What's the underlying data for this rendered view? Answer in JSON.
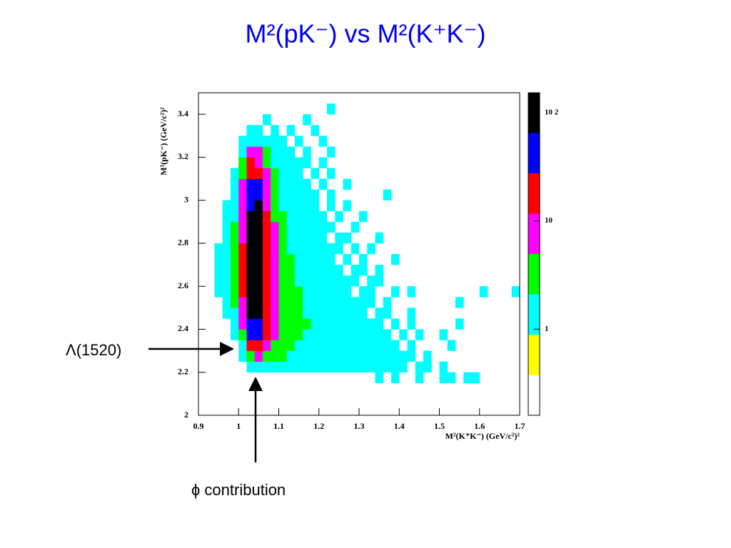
{
  "chart_data": {
    "type": "heatmap",
    "title": "M²(pK⁻) vs M²(K⁺K⁻)",
    "xlabel": "M²(K⁺K⁻) (GeV/c²)²",
    "ylabel": "M²(pK⁻) (GeV/c²)²",
    "annotations": [
      "Λ(1520)",
      "ϕ contribution"
    ],
    "xlim": [
      0.9,
      1.7
    ],
    "xticks": [
      0.9,
      1,
      1.1,
      1.2,
      1.3,
      1.4,
      1.5,
      1.6,
      1.7
    ],
    "ylim": [
      2,
      3.5
    ],
    "yticks": [
      2,
      2.2,
      2.4,
      2.6,
      2.8,
      3,
      3.2,
      3.4
    ],
    "zscale": "log",
    "zlim": [
      0.16,
      153
    ],
    "zticks": [
      1,
      10,
      {
        "value": 100,
        "label": "10 2"
      }
    ],
    "colors": [
      "#ffffff",
      "#ffff00",
      "#00ffff",
      "#00ff00",
      "#ff00ff",
      "#ff0000",
      "#0000ff",
      "#000000"
    ],
    "xbins": [
      0.9,
      0.92,
      0.94,
      0.96,
      0.98,
      1,
      1.02,
      1.04,
      1.06,
      1.08,
      1.1,
      1.12,
      1.14,
      1.16,
      1.18,
      1.2,
      1.22,
      1.24,
      1.26,
      1.28,
      1.3,
      1.32,
      1.34,
      1.36,
      1.38,
      1.4,
      1.42,
      1.44,
      1.46,
      1.48,
      1.5,
      1.52,
      1.54,
      1.56,
      1.58,
      1.6,
      1.62,
      1.64,
      1.66,
      1.68,
      1.7
    ],
    "ybins": [
      2,
      2.05,
      2.1,
      2.15,
      2.2,
      2.25,
      2.3,
      2.35,
      2.4,
      2.45,
      2.5,
      2.55,
      2.6,
      2.65,
      2.7,
      2.75,
      2.8,
      2.85,
      2.9,
      2.95,
      3,
      3.05,
      3.1,
      3.15,
      3.2,
      3.25,
      3.3,
      3.35,
      3.4,
      3.45,
      3.5
    ],
    "z": [
      [
        0,
        0,
        0,
        0,
        0,
        0,
        0,
        0,
        0,
        0,
        0,
        0,
        0,
        0,
        0,
        0,
        0,
        0,
        0,
        0,
        0,
        0,
        0,
        0,
        0,
        0,
        0,
        0,
        0,
        0,
        0,
        0,
        0,
        0,
        0,
        0,
        0,
        0,
        0,
        0
      ],
      [
        0,
        0,
        0,
        0,
        0,
        0,
        0,
        0,
        0,
        0,
        0,
        0,
        0,
        0,
        0,
        0,
        0,
        0,
        0,
        0,
        0,
        0,
        0,
        0,
        0,
        0,
        0,
        0,
        0,
        0,
        0,
        0,
        0,
        0,
        0,
        0,
        0,
        0,
        0,
        0
      ],
      [
        0,
        0,
        0,
        0,
        0,
        0,
        0,
        0,
        0,
        0,
        0,
        0,
        0,
        0,
        0,
        0,
        0,
        0,
        0,
        0,
        0,
        0,
        0,
        0,
        0,
        0,
        0,
        0,
        0,
        0,
        0,
        0,
        0,
        0,
        0,
        0,
        0,
        0,
        0,
        0
      ],
      [
        0,
        0,
        0,
        0,
        0,
        0,
        0,
        0,
        0,
        0,
        0,
        0,
        0,
        0,
        0,
        0,
        0,
        0,
        0,
        0,
        0,
        0,
        1,
        0,
        1,
        0,
        0,
        1,
        0,
        0,
        1,
        1,
        0,
        1,
        1,
        0,
        0,
        0,
        0,
        0
      ],
      [
        0,
        0,
        0,
        0,
        0,
        0,
        1,
        2,
        2,
        2,
        2,
        2,
        2,
        2,
        2,
        1,
        2,
        1,
        1,
        2,
        1,
        1,
        1,
        1,
        1,
        1,
        0,
        1,
        1,
        0,
        1,
        0,
        0,
        0,
        0,
        0,
        0,
        0,
        0,
        0
      ],
      [
        0,
        0,
        0,
        0,
        0,
        1,
        4,
        6,
        4,
        3,
        3,
        2,
        2,
        2,
        2,
        2,
        2,
        2,
        1,
        2,
        1,
        1,
        1,
        1,
        1,
        1,
        1,
        0,
        1,
        0,
        0,
        0,
        0,
        0,
        0,
        0,
        0,
        0,
        0,
        0
      ],
      [
        0,
        0,
        0,
        0,
        0,
        2,
        16,
        22,
        8,
        4,
        3,
        3,
        2,
        2,
        2,
        2,
        2,
        2,
        1,
        1,
        1,
        1,
        1,
        1,
        1,
        0,
        1,
        0,
        0,
        0,
        0,
        1,
        0,
        0,
        0,
        0,
        0,
        0,
        0,
        0
      ],
      [
        0,
        0,
        0,
        0,
        1,
        4,
        32,
        42,
        12,
        5,
        4,
        3,
        3,
        2,
        2,
        2,
        2,
        1,
        1,
        1,
        1,
        1,
        1,
        1,
        0,
        1,
        0,
        1,
        0,
        0,
        1,
        0,
        0,
        0,
        0,
        0,
        0,
        0,
        0,
        0
      ],
      [
        0,
        0,
        0,
        0,
        2,
        6,
        52,
        60,
        14,
        6,
        4,
        3,
        3,
        3,
        2,
        2,
        2,
        1,
        1,
        1,
        1,
        1,
        1,
        0,
        1,
        0,
        1,
        0,
        0,
        0,
        0,
        0,
        1,
        0,
        0,
        0,
        0,
        0,
        0,
        0
      ],
      [
        0,
        0,
        0,
        1,
        2,
        8,
        72,
        82,
        16,
        6,
        4,
        4,
        3,
        2,
        2,
        2,
        1,
        1,
        1,
        1,
        1,
        0,
        1,
        1,
        0,
        0,
        1,
        0,
        0,
        0,
        0,
        0,
        0,
        0,
        0,
        0,
        0,
        0,
        0,
        0
      ],
      [
        0,
        0,
        0,
        1,
        3,
        10,
        92,
        98,
        18,
        7,
        4,
        3,
        3,
        2,
        2,
        2,
        1,
        1,
        1,
        1,
        1,
        1,
        0,
        1,
        0,
        0,
        0,
        0,
        0,
        0,
        0,
        0,
        1,
        0,
        0,
        0,
        0,
        0,
        0,
        0
      ],
      [
        0,
        0,
        1,
        2,
        3,
        12,
        100,
        105,
        18,
        7,
        4,
        3,
        3,
        2,
        2,
        2,
        1,
        1,
        1,
        0,
        1,
        1,
        0,
        0,
        1,
        0,
        1,
        0,
        0,
        0,
        0,
        0,
        0,
        0,
        0,
        1,
        0,
        0,
        0,
        1
      ],
      [
        0,
        0,
        1,
        2,
        4,
        14,
        104,
        110,
        19,
        7,
        4,
        3,
        2,
        2,
        2,
        1,
        1,
        1,
        1,
        1,
        0,
        1,
        1,
        0,
        0,
        0,
        0,
        0,
        0,
        0,
        0,
        0,
        0,
        0,
        0,
        0,
        0,
        0,
        0,
        0
      ],
      [
        0,
        0,
        1,
        2,
        4,
        14,
        106,
        108,
        18,
        6,
        4,
        3,
        2,
        2,
        1,
        1,
        1,
        1,
        0,
        1,
        1,
        0,
        1,
        0,
        0,
        0,
        0,
        0,
        0,
        0,
        0,
        0,
        0,
        0,
        0,
        0,
        0,
        0,
        0,
        0
      ],
      [
        0,
        0,
        1,
        2,
        4,
        13,
        102,
        104,
        17,
        6,
        3,
        3,
        2,
        2,
        1,
        1,
        1,
        0,
        1,
        0,
        1,
        0,
        0,
        0,
        1,
        0,
        0,
        0,
        0,
        0,
        0,
        0,
        0,
        0,
        0,
        0,
        0,
        0,
        0,
        0
      ],
      [
        0,
        0,
        1,
        2,
        3,
        12,
        98,
        100,
        16,
        6,
        3,
        2,
        2,
        1,
        1,
        1,
        1,
        1,
        0,
        1,
        0,
        1,
        0,
        0,
        0,
        0,
        0,
        0,
        0,
        0,
        0,
        0,
        0,
        0,
        0,
        0,
        0,
        0,
        0,
        0
      ],
      [
        0,
        0,
        0,
        2,
        3,
        11,
        92,
        94,
        15,
        5,
        3,
        2,
        2,
        1,
        1,
        1,
        0,
        1,
        1,
        0,
        0,
        0,
        1,
        0,
        0,
        0,
        0,
        0,
        0,
        0,
        0,
        0,
        0,
        0,
        0,
        0,
        0,
        0,
        0,
        0
      ],
      [
        0,
        0,
        0,
        1,
        3,
        10,
        86,
        88,
        14,
        5,
        3,
        2,
        2,
        1,
        1,
        1,
        1,
        0,
        0,
        1,
        0,
        0,
        0,
        0,
        0,
        0,
        0,
        0,
        0,
        0,
        0,
        0,
        0,
        0,
        0,
        0,
        0,
        0,
        0,
        0
      ],
      [
        0,
        0,
        0,
        1,
        2,
        9,
        78,
        80,
        13,
        4,
        3,
        2,
        1,
        1,
        1,
        1,
        0,
        1,
        0,
        0,
        1,
        0,
        0,
        0,
        0,
        0,
        0,
        0,
        0,
        0,
        0,
        0,
        0,
        0,
        0,
        0,
        0,
        0,
        0,
        0
      ],
      [
        0,
        0,
        0,
        1,
        2,
        8,
        64,
        66,
        11,
        4,
        2,
        2,
        1,
        1,
        1,
        0,
        1,
        0,
        1,
        0,
        0,
        0,
        0,
        0,
        0,
        0,
        0,
        0,
        0,
        0,
        0,
        0,
        0,
        0,
        0,
        0,
        0,
        0,
        0,
        0
      ],
      [
        0,
        0,
        0,
        0,
        2,
        7,
        48,
        44,
        10,
        4,
        2,
        2,
        1,
        1,
        1,
        0,
        1,
        0,
        0,
        0,
        0,
        0,
        0,
        1,
        0,
        0,
        0,
        0,
        0,
        0,
        0,
        0,
        0,
        0,
        0,
        0,
        0,
        0,
        0,
        0
      ],
      [
        0,
        0,
        0,
        0,
        1,
        6,
        32,
        28,
        8,
        3,
        2,
        1,
        1,
        1,
        0,
        1,
        0,
        0,
        1,
        0,
        0,
        0,
        0,
        0,
        0,
        0,
        0,
        0,
        0,
        0,
        0,
        0,
        0,
        0,
        0,
        0,
        0,
        0,
        0,
        0
      ],
      [
        0,
        0,
        0,
        0,
        1,
        4,
        20,
        16,
        6,
        3,
        2,
        1,
        1,
        0,
        1,
        0,
        1,
        0,
        0,
        0,
        0,
        0,
        0,
        0,
        0,
        0,
        0,
        0,
        0,
        0,
        0,
        0,
        0,
        0,
        0,
        0,
        0,
        0,
        0,
        0
      ],
      [
        0,
        0,
        0,
        0,
        0,
        3,
        12,
        10,
        4,
        2,
        1,
        1,
        1,
        1,
        0,
        1,
        0,
        0,
        0,
        0,
        0,
        0,
        0,
        0,
        0,
        0,
        0,
        0,
        0,
        0,
        0,
        0,
        0,
        0,
        0,
        0,
        0,
        0,
        0,
        0
      ],
      [
        0,
        0,
        0,
        0,
        0,
        2,
        6,
        5,
        3,
        2,
        1,
        1,
        0,
        1,
        0,
        0,
        1,
        0,
        0,
        0,
        0,
        0,
        0,
        0,
        0,
        0,
        0,
        0,
        0,
        0,
        0,
        0,
        0,
        0,
        0,
        0,
        0,
        0,
        0,
        0
      ],
      [
        0,
        0,
        0,
        0,
        0,
        1,
        2,
        2,
        1,
        1,
        1,
        0,
        1,
        0,
        0,
        1,
        0,
        0,
        0,
        0,
        0,
        0,
        0,
        0,
        0,
        0,
        0,
        0,
        0,
        0,
        0,
        0,
        0,
        0,
        0,
        0,
        0,
        0,
        0,
        0
      ],
      [
        0,
        0,
        0,
        0,
        0,
        0,
        1,
        1,
        0,
        1,
        0,
        1,
        0,
        0,
        1,
        0,
        0,
        0,
        0,
        0,
        0,
        0,
        0,
        0,
        0,
        0,
        0,
        0,
        0,
        0,
        0,
        0,
        0,
        0,
        0,
        0,
        0,
        0,
        0,
        0
      ],
      [
        0,
        0,
        0,
        0,
        0,
        0,
        0,
        0,
        1,
        0,
        0,
        0,
        0,
        1,
        0,
        0,
        0,
        0,
        0,
        0,
        0,
        0,
        0,
        0,
        0,
        0,
        0,
        0,
        0,
        0,
        0,
        0,
        0,
        0,
        0,
        0,
        0,
        0,
        0,
        0
      ],
      [
        0,
        0,
        0,
        0,
        0,
        0,
        0,
        0,
        0,
        0,
        0,
        0,
        0,
        0,
        0,
        0,
        1,
        0,
        0,
        0,
        0,
        0,
        0,
        0,
        0,
        0,
        0,
        0,
        0,
        0,
        0,
        0,
        0,
        0,
        0,
        0,
        0,
        0,
        0,
        0
      ],
      [
        0,
        0,
        0,
        0,
        0,
        0,
        0,
        0,
        0,
        0,
        0,
        0,
        0,
        0,
        0,
        0,
        0,
        0,
        0,
        0,
        0,
        0,
        0,
        0,
        0,
        0,
        0,
        0,
        0,
        0,
        0,
        0,
        0,
        0,
        0,
        0,
        0,
        0,
        0,
        0
      ]
    ]
  }
}
